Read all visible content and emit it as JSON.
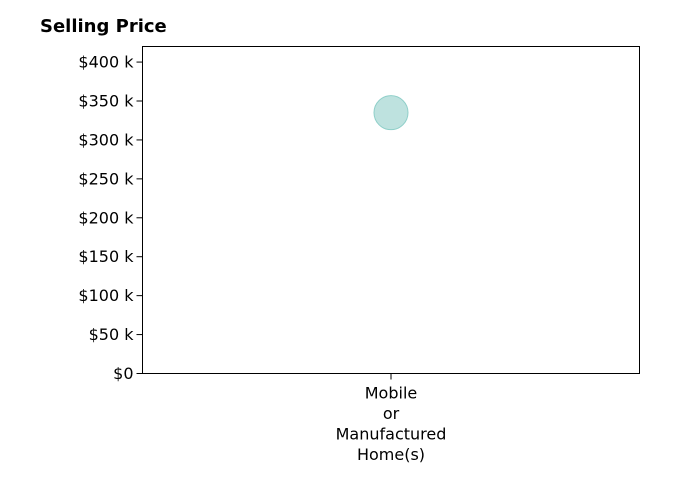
{
  "chart_data": {
    "type": "scatter",
    "title": "Selling Price",
    "xlabel": "",
    "ylabel": "",
    "categories": [
      "Mobile or Manufactured Home(s)"
    ],
    "category_lines": [
      [
        "Mobile",
        "or",
        "Manufactured",
        "Home(s)"
      ]
    ],
    "series": [
      {
        "values": [
          335000
        ],
        "color": "#a8d8d4"
      }
    ],
    "ylim": [
      0,
      420000
    ],
    "yticks": [
      0,
      50000,
      100000,
      150000,
      200000,
      250000,
      300000,
      350000,
      400000
    ],
    "ytick_labels": [
      "$0",
      "$50 k",
      "$100 k",
      "$150 k",
      "$200 k",
      "$250 k",
      "$300 k",
      "$350 k",
      "$400 k"
    ],
    "grid": false,
    "legend": "none"
  }
}
